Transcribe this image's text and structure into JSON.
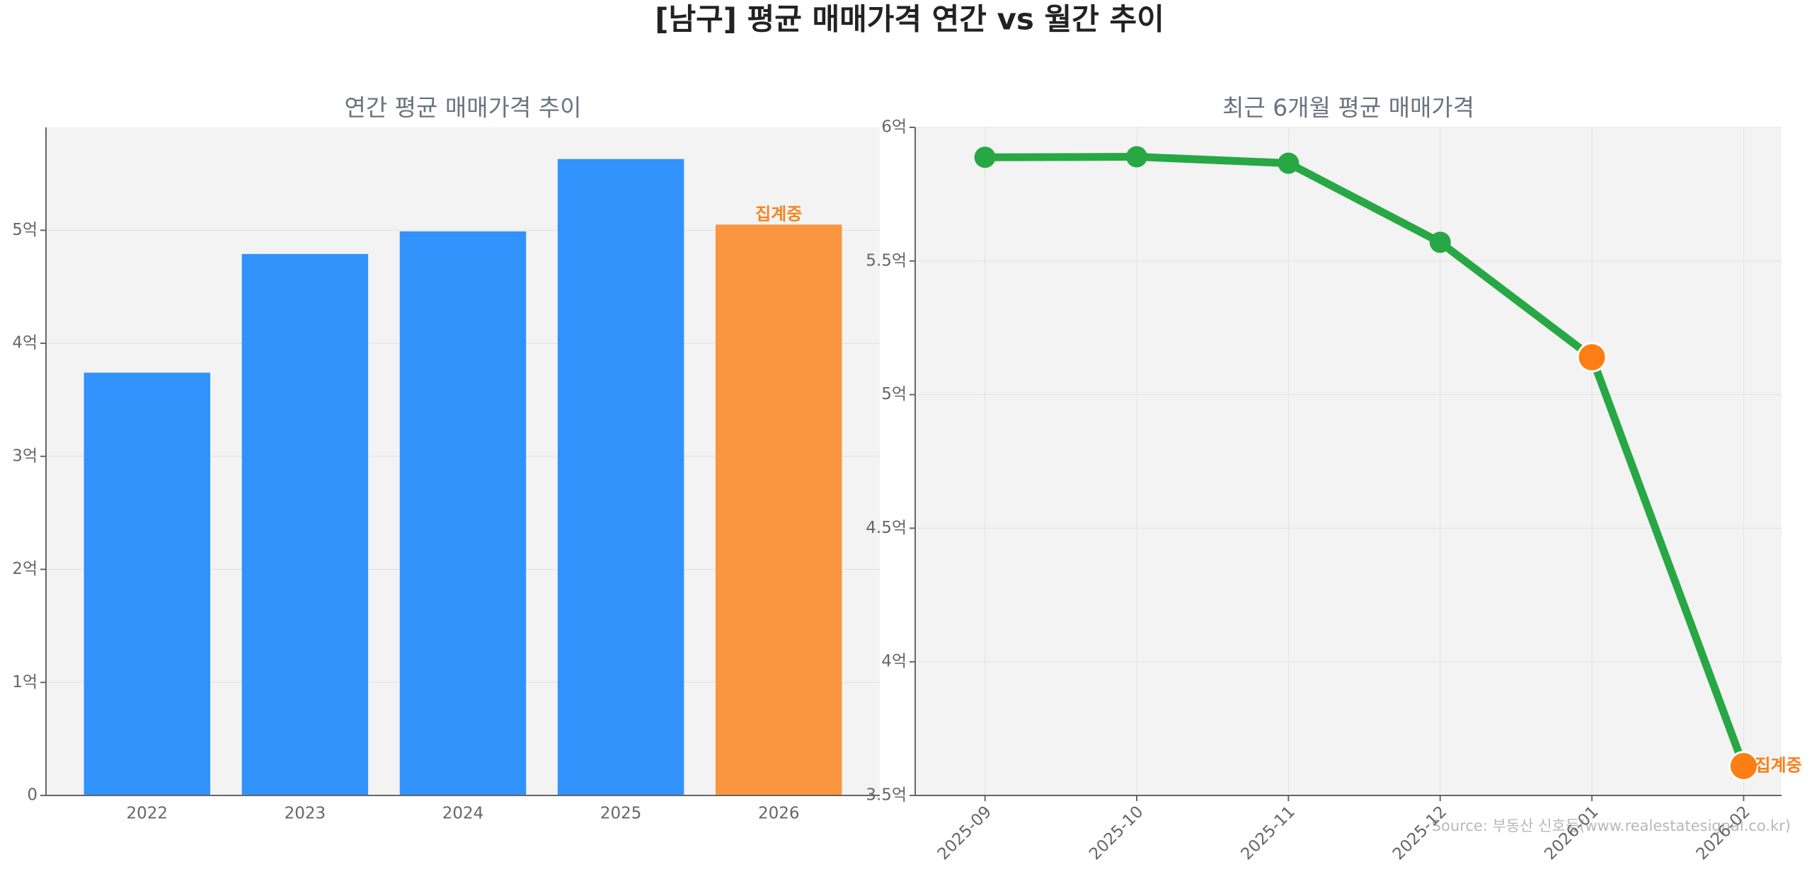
{
  "title": "[남구] 평균 매매가격 연간 vs 월간 추이",
  "source": "Source: 부동산 신호등(www.realestatesignal.co.kr)",
  "chart_data": [
    {
      "type": "bar",
      "title": "연간 평균 매매가격 추이",
      "categories": [
        "2022",
        "2023",
        "2024",
        "2025",
        "2026"
      ],
      "values": [
        3.74,
        4.79,
        4.99,
        5.63,
        5.05
      ],
      "colors": [
        "#3192fc",
        "#3192fc",
        "#3192fc",
        "#3192fc",
        "#f9963f"
      ],
      "annotation": {
        "text": "집계중",
        "category": "2026",
        "color": "#f5841f"
      },
      "ylim": [
        0,
        5.91
      ],
      "yticks": [
        0,
        {
          "value": 1,
          "label": "1억"
        },
        {
          "value": 2,
          "label": "2억"
        },
        {
          "value": 3,
          "label": "3억"
        },
        {
          "value": 4,
          "label": "4억"
        },
        {
          "value": 5,
          "label": "5억"
        }
      ],
      "grid": true
    },
    {
      "type": "line",
      "title": "최근 6개월 평균 매매가격",
      "categories": [
        "2025-09",
        "2025-10",
        "2025-11",
        "2025-12",
        "2026-01",
        "2026-02"
      ],
      "values": [
        5.888,
        5.89,
        5.866,
        5.57,
        5.14,
        3.61
      ],
      "color": "#28a745",
      "marker_colors": [
        "#28a745",
        "#28a745",
        "#28a745",
        "#28a745",
        "#fd7e14",
        "#fd7e14"
      ],
      "annotation": {
        "text": "집계중",
        "category": "2026-02",
        "color": "#fd7e14"
      },
      "ylim": [
        3.5,
        6
      ],
      "yticks": [
        {
          "value": 3.5,
          "label": "3.5억"
        },
        {
          "value": 4,
          "label": "4억"
        },
        {
          "value": 4.5,
          "label": "4.5억"
        },
        {
          "value": 5,
          "label": "5억"
        },
        {
          "value": 5.5,
          "label": "5.5억"
        },
        {
          "value": 6,
          "label": "6억"
        }
      ],
      "xtick_rotation": 45,
      "grid": true
    }
  ]
}
